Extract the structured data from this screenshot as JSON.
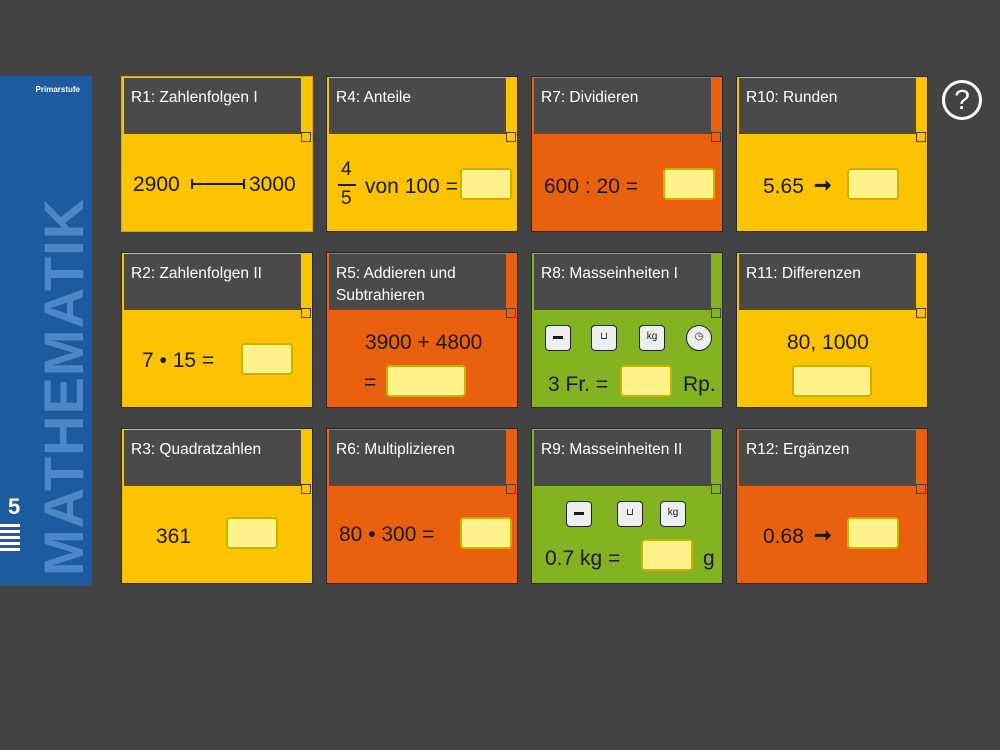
{
  "cover": {
    "stufe": "Primarstufe",
    "title": "MATHEMATIK",
    "grade": "5"
  },
  "help": {
    "label": "?"
  },
  "cards": {
    "r1": {
      "title": "R1: Zahlenfolgen I",
      "a": "2900",
      "b": "3000"
    },
    "r2": {
      "title": "R2: Zahlenfolgen II",
      "expr": "7 • 15 ="
    },
    "r3": {
      "title": "R3: Quadratzahlen",
      "value": "361"
    },
    "r4": {
      "title": "R4: Anteile",
      "num": "4",
      "den": "5",
      "rest": "von 100 ="
    },
    "r5": {
      "title": "R5: Addieren und Subtrahieren",
      "expr": "3900 + 4800",
      "eq": "="
    },
    "r6": {
      "title": "R6: Multiplizieren",
      "expr": "80 • 300 ="
    },
    "r7": {
      "title": "R7: Dividieren",
      "expr": "600 : 20 ="
    },
    "r8": {
      "title": "R8: Masseinheiten I",
      "left": "3 Fr. =",
      "right": "Rp."
    },
    "r9": {
      "title": "R9: Masseinheiten II",
      "left": "0.7 kg =",
      "right": "g"
    },
    "r10": {
      "title": "R10: Runden",
      "value": "5.65",
      "arrow": "➞"
    },
    "r11": {
      "title": "R11: Differenzen",
      "value": "80, 1000"
    },
    "r12": {
      "title": "R12: Ergänzen",
      "value": "0.68",
      "arrow": "➞"
    }
  },
  "colors": {
    "background": "#434343",
    "yellow": "#fcc400",
    "orange": "#e9600f",
    "green": "#83b321",
    "header": "#4a4a4a",
    "answer": "#fff28a"
  },
  "icons": [
    "ruler-icon",
    "measuring-cup-icon",
    "weight-icon",
    "clock-icon"
  ]
}
